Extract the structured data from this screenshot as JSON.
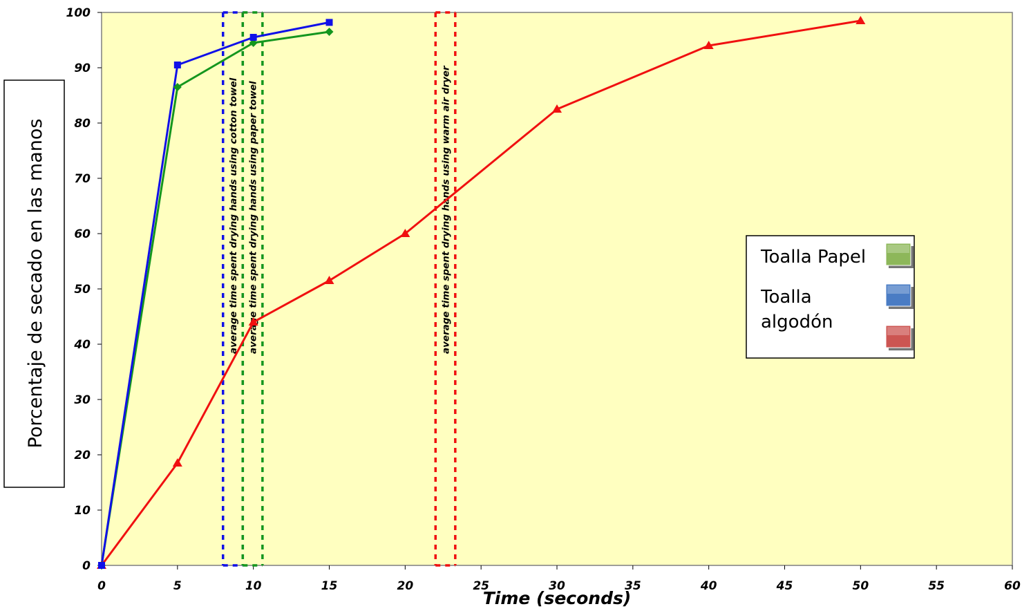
{
  "chart_data": {
    "type": "line",
    "xlabel": "Time (seconds)",
    "ylabel": "Porcentaje de secado en las manos",
    "xlim": [
      0,
      60
    ],
    "ylim": [
      0,
      100
    ],
    "x_ticks": [
      "0",
      "5",
      "10",
      "15",
      "20",
      "25",
      "30",
      "35",
      "40",
      "45",
      "50",
      "55",
      "60"
    ],
    "y_ticks": [
      "0",
      "10",
      "20",
      "30",
      "40",
      "50",
      "60",
      "70",
      "80",
      "90",
      "100"
    ],
    "plot_background": "#FFFFC0",
    "series": [
      {
        "color": "#1010E8",
        "marker": "square",
        "x": [
          0,
          5,
          10,
          15
        ],
        "y": [
          0,
          90.5,
          95.5,
          98.2
        ]
      },
      {
        "color": "#14961E",
        "marker": "diamond",
        "x": [
          0,
          5,
          10,
          15
        ],
        "y": [
          0,
          86.5,
          94.5,
          96.5
        ]
      },
      {
        "color": "#F01010",
        "marker": "triangle",
        "x": [
          0,
          5,
          10,
          15,
          20,
          30,
          40,
          50
        ],
        "y": [
          0,
          18.5,
          44,
          51.5,
          60,
          82.5,
          94,
          98.5
        ]
      }
    ],
    "reference_bands": [
      {
        "color": "#1010E8",
        "x_start": 8,
        "x_end": 9.3,
        "label": "average time spent drying hands using cotton towel"
      },
      {
        "color": "#14961E",
        "x_start": 9.3,
        "x_end": 10.6,
        "label": "average time spent drying hands using paper towel"
      },
      {
        "color": "#F01010",
        "x_start": 22,
        "x_end": 23.3,
        "label": "average time spent drying hands using warm air dryer"
      }
    ],
    "legend": {
      "placement": "right",
      "entries": [
        {
          "label": "Toalla Papel",
          "color": "#8DB75A"
        },
        {
          "label": "Toalla algodón",
          "color": "#4A7CC4"
        },
        {
          "label": "",
          "color": "#CC5552"
        }
      ]
    }
  }
}
